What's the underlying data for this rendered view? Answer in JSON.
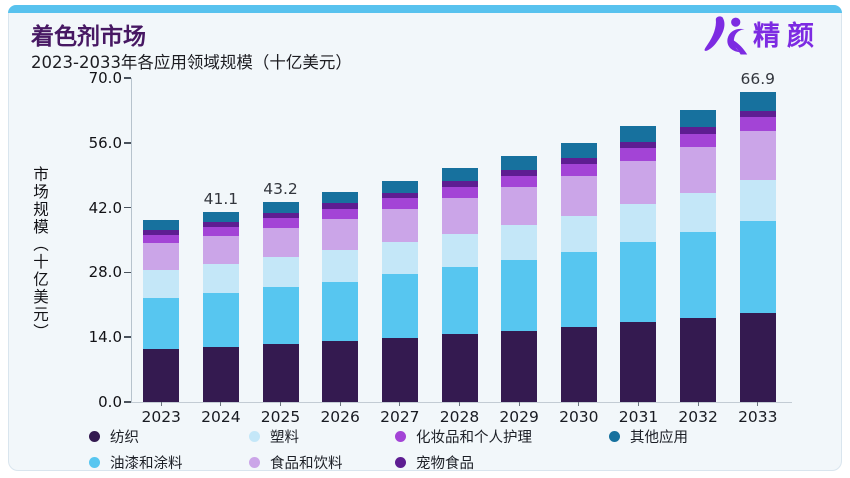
{
  "header": {
    "title": "着色剂市场",
    "subtitle": "2023-2033年各应用领域规模（十亿美元）"
  },
  "logo": {
    "text": "精颜"
  },
  "colors": {
    "accent_strip": "#58c2ee",
    "title": "#471863",
    "logo": "#7d2be2",
    "card_bg": "#f2f7fa"
  },
  "chart_data": {
    "type": "bar",
    "stacked": true,
    "ylabel": "市场规模（十亿美元）",
    "ylim": [
      0,
      70
    ],
    "yticks": [
      0,
      14,
      28,
      42,
      56,
      70
    ],
    "grid": false,
    "legend_position": "bottom",
    "categories": [
      "2023",
      "2024",
      "2025",
      "2026",
      "2027",
      "2028",
      "2029",
      "2030",
      "2031",
      "2032",
      "2033"
    ],
    "series": [
      {
        "name": "纺织",
        "color": "#341a50",
        "values": [
          11.4,
          11.9,
          12.5,
          13.1,
          13.9,
          14.6,
          15.4,
          16.2,
          17.2,
          18.2,
          19.2
        ]
      },
      {
        "name": "油漆和涂料",
        "color": "#57c6f0",
        "values": [
          11.1,
          11.7,
          12.3,
          12.9,
          13.7,
          14.5,
          15.3,
          16.2,
          17.3,
          18.5,
          19.9
        ]
      },
      {
        "name": "塑料",
        "color": "#c4e7f8",
        "values": [
          6.1,
          6.3,
          6.5,
          6.8,
          7.0,
          7.3,
          7.5,
          7.8,
          8.2,
          8.5,
          8.8
        ]
      },
      {
        "name": "食品和饮料",
        "color": "#cba5e8",
        "values": [
          5.7,
          6.0,
          6.4,
          6.8,
          7.2,
          7.7,
          8.2,
          8.7,
          9.4,
          10.0,
          10.7
        ]
      },
      {
        "name": "化妆品和个人护理",
        "color": "#a344d6",
        "values": [
          1.8,
          1.9,
          2.0,
          2.1,
          2.2,
          2.3,
          2.4,
          2.5,
          2.7,
          2.8,
          2.9
        ]
      },
      {
        "name": "宠物食品",
        "color": "#5e1d92",
        "values": [
          1.1,
          1.1,
          1.2,
          1.2,
          1.2,
          1.3,
          1.3,
          1.3,
          1.4,
          1.4,
          1.4
        ]
      },
      {
        "name": "其他应用",
        "color": "#17719e",
        "values": [
          2.2,
          2.2,
          2.3,
          2.5,
          2.6,
          2.8,
          3.0,
          3.2,
          3.5,
          3.7,
          4.0
        ]
      }
    ],
    "annotations": [
      {
        "category": "2024",
        "text": "41.1"
      },
      {
        "category": "2025",
        "text": "43.2"
      },
      {
        "category": "2033",
        "text": "66.9"
      }
    ]
  }
}
